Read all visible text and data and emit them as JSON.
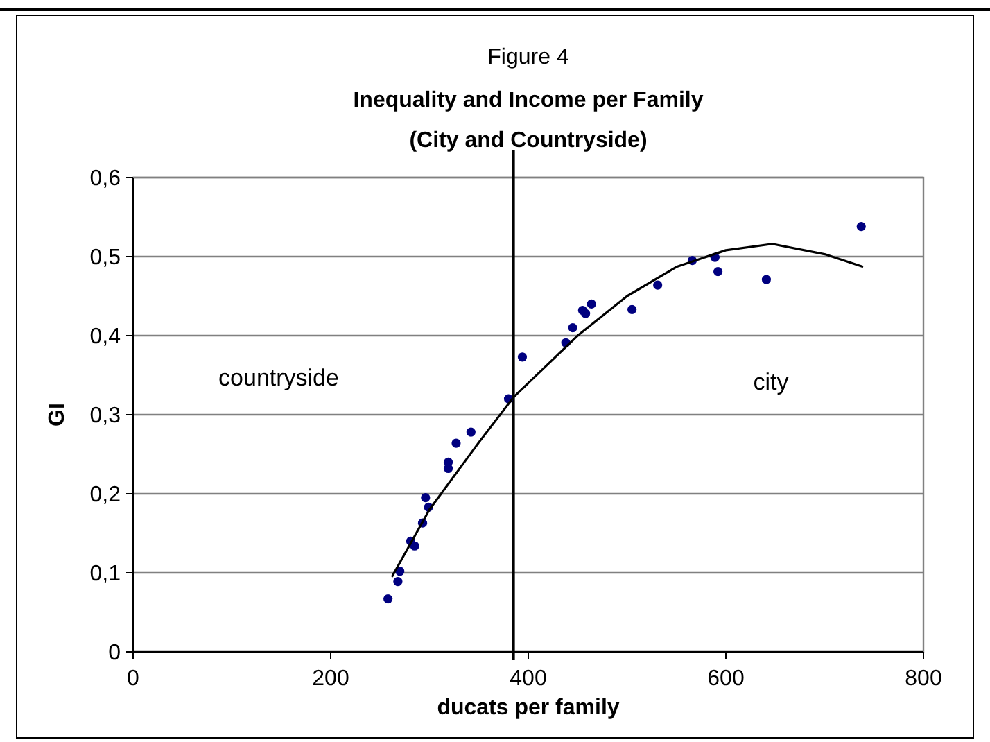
{
  "chart_data": {
    "type": "scatter",
    "title": "Inequality and Income per Family",
    "subtitle": "(City and Countryside)",
    "annotations": [
      "Figure 4",
      "countryside",
      "city"
    ],
    "xlabel": "ducats per family",
    "ylabel": "GI",
    "xlim": [
      0,
      800
    ],
    "xticks": [
      0,
      200,
      400,
      600,
      800
    ],
    "ylim": [
      0,
      0.6
    ],
    "yticks": [
      {
        "value": 0,
        "label": "0"
      },
      {
        "value": 0.1,
        "label": "0,1"
      },
      {
        "value": 0.2,
        "label": "0,2"
      },
      {
        "value": 0.3,
        "label": "0,3"
      },
      {
        "value": 0.4,
        "label": "0,4"
      },
      {
        "value": 0.5,
        "label": "0,5"
      },
      {
        "value": 0.6,
        "label": "0,6"
      }
    ],
    "grid": "y",
    "ref_lines": [
      {
        "axis": "x",
        "value": 385,
        "color": "#000000"
      }
    ],
    "series": [
      {
        "color": "#000080",
        "marker": "circle",
        "x": [
          258,
          268,
          270,
          281,
          285,
          293,
          296,
          299,
          319,
          319,
          327,
          342,
          380,
          394,
          438,
          445,
          455,
          458,
          464,
          505,
          531,
          566,
          589,
          592,
          641,
          737
        ],
        "values": [
          0.067,
          0.089,
          0.102,
          0.14,
          0.134,
          0.163,
          0.195,
          0.183,
          0.24,
          0.232,
          0.264,
          0.278,
          0.32,
          0.373,
          0.391,
          0.41,
          0.432,
          0.428,
          0.44,
          0.433,
          0.464,
          0.495,
          0.499,
          0.481,
          0.471,
          0.538
        ]
      },
      {
        "type": "line",
        "color": "#000000",
        "marker": "none",
        "x": [
          262,
          300,
          350,
          385,
          450,
          500,
          550,
          600,
          647,
          700,
          739
        ],
        "values": [
          0.095,
          0.18,
          0.265,
          0.322,
          0.4,
          0.45,
          0.487,
          0.508,
          0.516,
          0.503,
          0.487
        ]
      }
    ]
  }
}
